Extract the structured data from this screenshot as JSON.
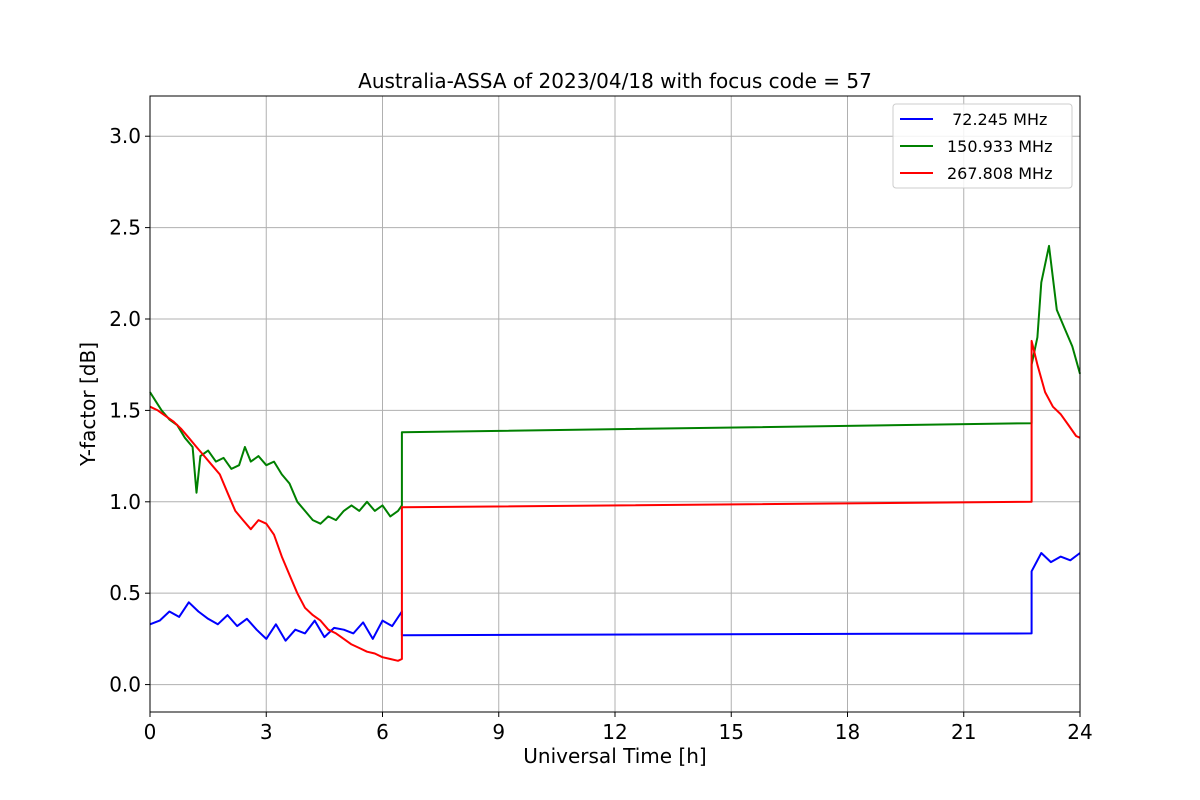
{
  "chart_data": {
    "type": "line",
    "title": "Australia-ASSA of 2023/04/18 with focus code = 57",
    "xlabel": "Universal Time [h]",
    "ylabel": "Y-factor [dB]",
    "xlim": [
      0,
      24
    ],
    "ylim": [
      -0.15,
      3.22
    ],
    "xticks": [
      0,
      3,
      6,
      9,
      12,
      15,
      18,
      21,
      24
    ],
    "xtick_labels": [
      "0",
      "3",
      "6",
      "9",
      "12",
      "15",
      "18",
      "21",
      "24"
    ],
    "yticks": [
      0.0,
      0.5,
      1.0,
      1.5,
      2.0,
      2.5,
      3.0
    ],
    "ytick_labels": [
      "0.0",
      "0.5",
      "1.0",
      "1.5",
      "2.0",
      "2.5",
      "3.0"
    ],
    "grid": true,
    "legend_position": "top-right",
    "series": [
      {
        "name": " 72.245 MHz",
        "color": "#0000ff",
        "x": [
          0,
          0.25,
          0.5,
          0.75,
          1.0,
          1.25,
          1.5,
          1.75,
          2.0,
          2.25,
          2.5,
          2.75,
          3.0,
          3.25,
          3.5,
          3.75,
          4.0,
          4.25,
          4.5,
          4.75,
          5.0,
          5.25,
          5.5,
          5.75,
          6.0,
          6.25,
          6.5,
          6.5,
          22.75,
          22.75,
          23.0,
          23.25,
          23.5,
          23.75,
          24.0
        ],
        "y": [
          0.33,
          0.35,
          0.4,
          0.37,
          0.45,
          0.4,
          0.36,
          0.33,
          0.38,
          0.32,
          0.36,
          0.3,
          0.25,
          0.33,
          0.24,
          0.3,
          0.28,
          0.35,
          0.26,
          0.31,
          0.3,
          0.28,
          0.34,
          0.25,
          0.35,
          0.32,
          0.4,
          0.27,
          0.28,
          0.62,
          0.72,
          0.67,
          0.7,
          0.68,
          0.72
        ]
      },
      {
        "name": "150.933 MHz",
        "color": "#008000",
        "x": [
          0,
          0.15,
          0.3,
          0.5,
          0.7,
          0.9,
          1.1,
          1.2,
          1.3,
          1.5,
          1.7,
          1.9,
          2.1,
          2.3,
          2.45,
          2.6,
          2.8,
          3.0,
          3.2,
          3.4,
          3.6,
          3.8,
          4.0,
          4.2,
          4.4,
          4.6,
          4.8,
          5.0,
          5.2,
          5.4,
          5.6,
          5.8,
          6.0,
          6.2,
          6.4,
          6.5,
          6.5,
          22.75,
          22.75,
          22.9,
          23.0,
          23.2,
          23.4,
          23.6,
          23.8,
          24.0
        ],
        "y": [
          1.6,
          1.55,
          1.5,
          1.45,
          1.42,
          1.35,
          1.3,
          1.05,
          1.25,
          1.28,
          1.22,
          1.24,
          1.18,
          1.2,
          1.3,
          1.22,
          1.25,
          1.2,
          1.22,
          1.15,
          1.1,
          1.0,
          0.95,
          0.9,
          0.88,
          0.92,
          0.9,
          0.95,
          0.98,
          0.95,
          1.0,
          0.95,
          0.98,
          0.92,
          0.95,
          0.98,
          1.38,
          1.43,
          1.75,
          1.9,
          2.2,
          2.4,
          2.05,
          1.95,
          1.85,
          1.7
        ]
      },
      {
        "name": "267.808 MHz",
        "color": "#ff0000",
        "x": [
          0,
          0.2,
          0.4,
          0.6,
          0.8,
          1.0,
          1.2,
          1.4,
          1.6,
          1.8,
          2.0,
          2.2,
          2.4,
          2.6,
          2.8,
          3.0,
          3.2,
          3.4,
          3.6,
          3.8,
          4.0,
          4.2,
          4.4,
          4.6,
          4.8,
          5.0,
          5.2,
          5.4,
          5.6,
          5.8,
          6.0,
          6.2,
          6.4,
          6.5,
          6.5,
          22.75,
          22.75,
          22.9,
          23.1,
          23.3,
          23.5,
          23.7,
          23.9,
          24.0
        ],
        "y": [
          1.52,
          1.5,
          1.47,
          1.44,
          1.4,
          1.35,
          1.3,
          1.25,
          1.2,
          1.15,
          1.05,
          0.95,
          0.9,
          0.85,
          0.9,
          0.88,
          0.82,
          0.7,
          0.6,
          0.5,
          0.42,
          0.38,
          0.35,
          0.3,
          0.28,
          0.25,
          0.22,
          0.2,
          0.18,
          0.17,
          0.15,
          0.14,
          0.13,
          0.14,
          0.97,
          1.0,
          1.88,
          1.75,
          1.6,
          1.52,
          1.48,
          1.42,
          1.36,
          1.35
        ]
      }
    ]
  }
}
